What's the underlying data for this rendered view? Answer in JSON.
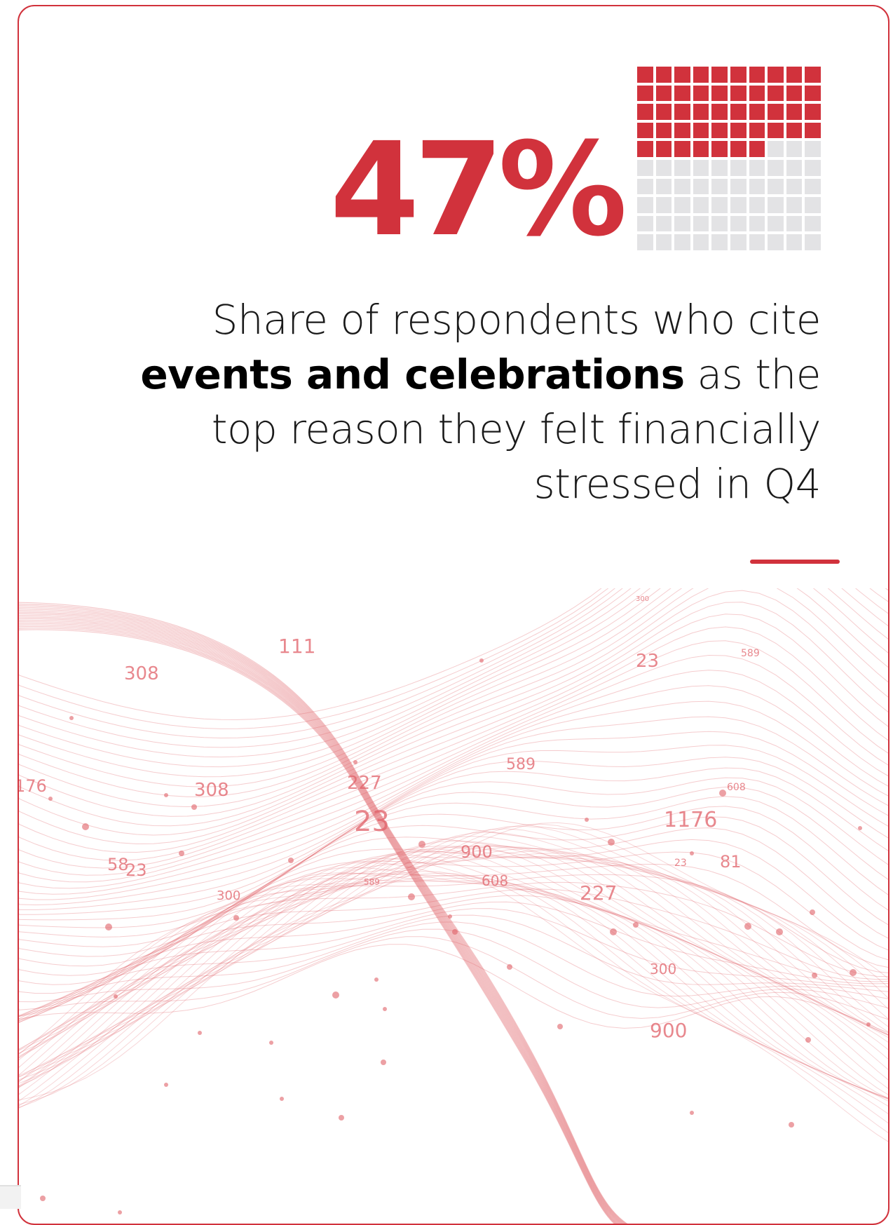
{
  "chart_data": {
    "type": "waffle",
    "value_percent": 47,
    "value_label": "47%",
    "grid": {
      "rows": 10,
      "cols": 10
    },
    "filled_color": "#d1323c",
    "empty_color": "#e3e3e5"
  },
  "caption": {
    "line1": "Share of respondents who cite",
    "line2_bold": "events and celebrations",
    "line2_rest": " as the",
    "line3": "top reason they felt financially",
    "line4": "stressed in Q4"
  },
  "colors": {
    "accent": "#d1323c",
    "wave": "#e06068"
  },
  "background_numbers": [
    "111",
    "308",
    "23",
    "589",
    "608",
    "176",
    "308",
    "227",
    "23",
    "589",
    "1176",
    "58",
    "23",
    "900",
    "608",
    "227",
    "23",
    "81",
    "300",
    "589",
    "300",
    "900",
    "300"
  ]
}
